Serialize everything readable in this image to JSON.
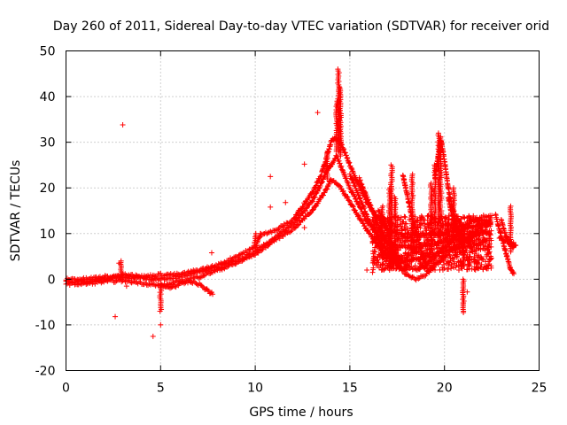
{
  "chart_data": {
    "type": "scatter",
    "title": "Day 260 of 2011, Sidereal Day-to-day VTEC variation (SDTVAR) for receiver orid",
    "xlabel": "GPS time / hours",
    "ylabel": "SDTVAR / TECUs",
    "xlim": [
      0,
      25
    ],
    "ylim": [
      -20,
      50
    ],
    "xticks": [
      0,
      5,
      10,
      15,
      20,
      25
    ],
    "yticks": [
      -20,
      -10,
      0,
      10,
      20,
      30,
      40,
      50
    ],
    "xtick_labels": [
      "0",
      "5",
      "10",
      "15",
      "20",
      "25"
    ],
    "ytick_labels": [
      "-20",
      "-10",
      "0",
      "10",
      "20",
      "30",
      "40",
      "50"
    ],
    "grid": true,
    "marker": "+",
    "color": "#ff0000",
    "series": [
      {
        "name": "SDTVAR",
        "tracks": [
          [
            [
              0.0,
              -0.5
            ],
            [
              1.0,
              -0.5
            ],
            [
              2.0,
              0.0
            ],
            [
              2.5,
              0.5
            ],
            [
              3.0,
              1.0
            ],
            [
              3.5,
              0.8
            ],
            [
              4.0,
              0.5
            ],
            [
              4.5,
              0.0
            ],
            [
              5.0,
              0.0
            ],
            [
              6.0,
              0.5
            ],
            [
              7.0,
              1.5
            ],
            [
              8.0,
              2.5
            ],
            [
              9.0,
              4.0
            ],
            [
              10.0,
              6.0
            ],
            [
              10.5,
              7.5
            ],
            [
              11.0,
              9.0
            ],
            [
              12.0,
              12.0
            ],
            [
              13.0,
              17.0
            ],
            [
              13.5,
              21.0
            ],
            [
              13.8,
              24.0
            ],
            [
              14.0,
              25.0
            ],
            [
              14.3,
              27.0
            ],
            [
              14.5,
              25.0
            ],
            [
              15.0,
              20.0
            ],
            [
              16.0,
              12.0
            ],
            [
              17.0,
              8.0
            ],
            [
              18.0,
              7.0
            ],
            [
              19.0,
              7.5
            ],
            [
              20.0,
              8.0
            ],
            [
              21.0,
              9.0
            ],
            [
              22.0,
              10.0
            ],
            [
              22.5,
              10.0
            ]
          ],
          [
            [
              0.0,
              -1.0
            ],
            [
              1.0,
              -1.0
            ],
            [
              2.0,
              -0.5
            ],
            [
              3.0,
              -0.3
            ],
            [
              4.0,
              -0.8
            ],
            [
              5.0,
              -1.5
            ],
            [
              6.0,
              -0.5
            ],
            [
              7.0,
              0.5
            ],
            [
              8.0,
              2.0
            ],
            [
              9.0,
              3.5
            ],
            [
              10.0,
              5.5
            ],
            [
              11.0,
              8.5
            ],
            [
              12.0,
              11.0
            ],
            [
              13.0,
              15.0
            ],
            [
              13.5,
              18.0
            ],
            [
              13.8,
              20.0
            ],
            [
              14.0,
              22.0
            ],
            [
              14.5,
              20.0
            ],
            [
              15.0,
              17.0
            ],
            [
              16.0,
              10.0
            ],
            [
              17.0,
              5.0
            ],
            [
              18.0,
              4.0
            ],
            [
              19.0,
              5.0
            ],
            [
              20.0,
              6.0
            ],
            [
              21.0,
              7.0
            ],
            [
              22.0,
              8.0
            ],
            [
              22.5,
              9.0
            ]
          ],
          [
            [
              0.0,
              0.0
            ],
            [
              1.0,
              0.0
            ],
            [
              2.0,
              0.5
            ],
            [
              3.0,
              0.5
            ],
            [
              4.0,
              0.5
            ],
            [
              5.0,
              1.0
            ],
            [
              6.0,
              1.0
            ],
            [
              7.0,
              2.0
            ],
            [
              8.0,
              3.0
            ],
            [
              9.0,
              5.0
            ],
            [
              10.0,
              7.0
            ],
            [
              10.3,
              10.0
            ],
            [
              11.0,
              10.5
            ],
            [
              12.0,
              13.0
            ],
            [
              13.0,
              19.0
            ],
            [
              13.5,
              23.0
            ],
            [
              13.8,
              27.0
            ],
            [
              14.0,
              30.0
            ],
            [
              14.2,
              31.0
            ],
            [
              14.5,
              30.0
            ],
            [
              15.0,
              25.0
            ],
            [
              16.0,
              16.0
            ],
            [
              17.0,
              11.0
            ],
            [
              18.0,
              9.0
            ],
            [
              19.0,
              10.0
            ],
            [
              20.0,
              10.0
            ],
            [
              21.0,
              11.0
            ],
            [
              22.0,
              12.0
            ],
            [
              22.5,
              12.0
            ]
          ],
          [
            [
              5.0,
              -1.5
            ],
            [
              5.5,
              -1.8
            ],
            [
              6.0,
              -1.2
            ],
            [
              6.5,
              -0.5
            ],
            [
              7.0,
              -1.0
            ],
            [
              7.5,
              -2.5
            ],
            [
              7.8,
              -3.5
            ]
          ],
          [
            [
              15.0,
              23.0
            ],
            [
              15.5,
              18.0
            ],
            [
              16.0,
              13.0
            ],
            [
              16.5,
              9.0
            ],
            [
              17.0,
              6.0
            ],
            [
              17.5,
              3.0
            ],
            [
              18.0,
              1.0
            ],
            [
              18.5,
              0.0
            ],
            [
              19.0,
              1.0
            ],
            [
              19.5,
              3.0
            ],
            [
              20.0,
              5.0
            ],
            [
              20.5,
              7.0
            ],
            [
              21.0,
              8.0
            ],
            [
              21.5,
              10.0
            ],
            [
              22.0,
              12.0
            ],
            [
              22.5,
              13.0
            ]
          ],
          [
            [
              15.5,
              22.0
            ],
            [
              16.0,
              17.0
            ],
            [
              16.5,
              12.0
            ],
            [
              17.0,
              8.0
            ],
            [
              17.5,
              5.0
            ],
            [
              18.0,
              3.0
            ],
            [
              18.5,
              2.0
            ],
            [
              19.0,
              3.0
            ],
            [
              19.5,
              5.0
            ],
            [
              20.0,
              7.0
            ],
            [
              20.5,
              9.0
            ],
            [
              21.0,
              11.0
            ],
            [
              21.5,
              13.0
            ],
            [
              22.0,
              13.0
            ],
            [
              22.5,
              12.0
            ]
          ],
          [
            [
              16.5,
              15.0
            ],
            [
              16.8,
              13.0
            ],
            [
              17.0,
              10.0
            ],
            [
              17.3,
              6.0
            ],
            [
              17.6,
              3.0
            ],
            [
              18.0,
              2.0
            ]
          ],
          [
            [
              17.8,
              23.0
            ],
            [
              18.0,
              19.0
            ],
            [
              18.2,
              15.0
            ],
            [
              18.5,
              10.0
            ],
            [
              18.8,
              6.0
            ],
            [
              19.1,
              3.0
            ]
          ],
          [
            [
              19.5,
              22.0
            ],
            [
              19.7,
              28.0
            ],
            [
              19.8,
              31.0
            ],
            [
              20.0,
              26.0
            ],
            [
              20.2,
              20.0
            ],
            [
              20.5,
              14.0
            ],
            [
              20.8,
              9.0
            ],
            [
              21.0,
              6.0
            ]
          ],
          [
            [
              20.2,
              18.0
            ],
            [
              20.4,
              14.0
            ],
            [
              20.7,
              11.0
            ],
            [
              21.0,
              9.0
            ],
            [
              21.3,
              8.0
            ],
            [
              21.6,
              10.0
            ]
          ],
          [
            [
              22.7,
              14.0
            ],
            [
              22.9,
              11.0
            ],
            [
              23.1,
              8.0
            ],
            [
              23.3,
              5.0
            ],
            [
              23.5,
              2.0
            ],
            [
              23.7,
              1.0
            ]
          ],
          [
            [
              23.0,
              13.0
            ],
            [
              23.2,
              10.0
            ],
            [
              23.4,
              8.0
            ],
            [
              23.6,
              7.0
            ],
            [
              23.8,
              7.5
            ]
          ],
          [
            [
              22.9,
              9.0
            ],
            [
              23.2,
              8.5
            ],
            [
              23.5,
              8.0
            ],
            [
              23.8,
              7.5
            ]
          ]
        ],
        "spikes": [
          {
            "x": 14.4,
            "y_from": 28,
            "y_to": 46
          },
          {
            "x": 14.5,
            "y_from": 27,
            "y_to": 42
          },
          {
            "x": 14.3,
            "y_from": 28,
            "y_to": 39
          },
          {
            "x": 13.8,
            "y_from": 22,
            "y_to": 28
          },
          {
            "x": 16.7,
            "y_from": 5,
            "y_to": 16
          },
          {
            "x": 17.1,
            "y_from": 2,
            "y_to": 20
          },
          {
            "x": 17.2,
            "y_from": 3,
            "y_to": 25
          },
          {
            "x": 17.4,
            "y_from": 4,
            "y_to": 18
          },
          {
            "x": 18.3,
            "y_from": 4,
            "y_to": 23
          },
          {
            "x": 19.7,
            "y_from": 8,
            "y_to": 32
          },
          {
            "x": 19.8,
            "y_from": 10,
            "y_to": 30
          },
          {
            "x": 19.5,
            "y_from": 10,
            "y_to": 25
          },
          {
            "x": 19.3,
            "y_from": 6,
            "y_to": 21
          },
          {
            "x": 20.5,
            "y_from": 8,
            "y_to": 20
          },
          {
            "x": 21.0,
            "y_from": 3,
            "y_to": 12
          },
          {
            "x": 21.0,
            "y_from": -7,
            "y_to": 0
          },
          {
            "x": 23.5,
            "y_from": 6,
            "y_to": 16
          },
          {
            "x": 2.9,
            "y_from": 0,
            "y_to": 4
          },
          {
            "x": 5.0,
            "y_from": -7,
            "y_to": -1
          },
          {
            "x": 10.0,
            "y_from": 7,
            "y_to": 10
          }
        ],
        "outliers": [
          [
            3.0,
            33.8
          ],
          [
            2.6,
            -8.2
          ],
          [
            4.6,
            -12.5
          ],
          [
            5.0,
            -10.0
          ],
          [
            10.8,
            22.5
          ],
          [
            10.8,
            15.8
          ],
          [
            11.6,
            16.8
          ],
          [
            12.6,
            25.2
          ],
          [
            13.3,
            36.5
          ],
          [
            12.6,
            11.3
          ],
          [
            7.7,
            5.8
          ],
          [
            21.0,
            -7.3
          ],
          [
            21.0,
            -5.2
          ],
          [
            21.2,
            -2.8
          ],
          [
            2.8,
            3.5
          ],
          [
            3.2,
            -1.5
          ],
          [
            16.2,
            1.5
          ],
          [
            15.9,
            2.0
          ],
          [
            19.5,
            2.0
          ],
          [
            18.3,
            0.5
          ]
        ],
        "noise_band": {
          "x_from": 16.2,
          "x_to": 22.5,
          "y_from": 2,
          "y_to": 14
        }
      }
    ]
  }
}
